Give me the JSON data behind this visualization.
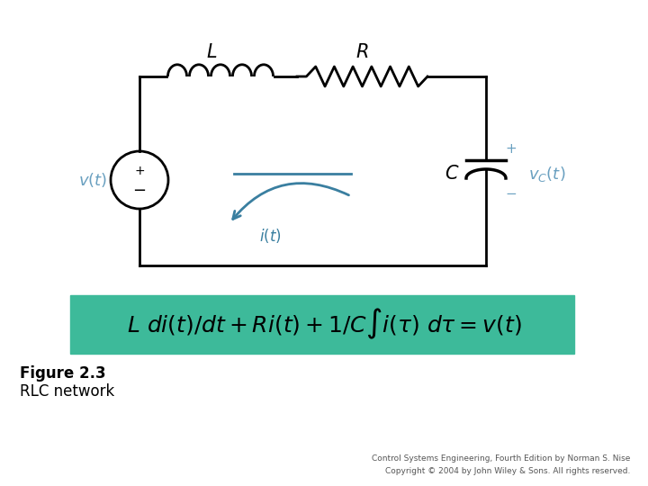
{
  "bg_color": "#ffffff",
  "teal_color": "#3a7fa0",
  "circuit_color": "#000000",
  "blue_label_color": "#6aa0c0",
  "equation_bg": "#3dba9a",
  "figure_label": "Figure 2.3",
  "figure_sublabel": "RLC network",
  "copyright_line1": "Control Systems Engineering, Fourth Edition by Norman S. Nise",
  "copyright_line2": "Copyright © 2004 by John Wiley & Sons. All rights reserved."
}
